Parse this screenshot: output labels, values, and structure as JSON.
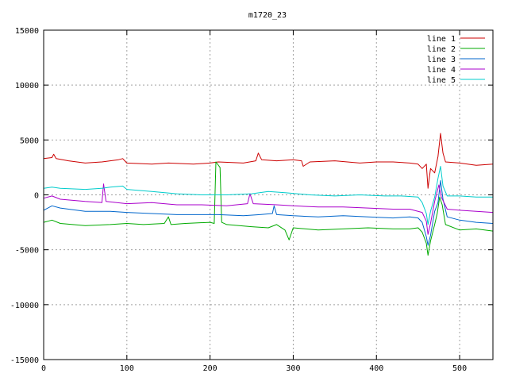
{
  "chart_data": {
    "type": "line",
    "title": "m1720_23",
    "xlabel": "",
    "ylabel": "",
    "xlim": [
      0,
      540
    ],
    "ylim": [
      -15000,
      15000
    ],
    "grid": true,
    "legend_position": "top-right",
    "x_ticks": [
      "0",
      "100",
      "200",
      "300",
      "400",
      "500"
    ],
    "y_ticks": [
      "15000",
      "10000",
      "5000",
      "0",
      "-5000",
      "-10000",
      "-15000"
    ],
    "x_tick_values": [
      0,
      100,
      200,
      300,
      400,
      500
    ],
    "y_tick_values": [
      15000,
      10000,
      5000,
      0,
      -5000,
      -10000,
      -15000
    ],
    "series": [
      {
        "name": "line 1",
        "color": "#cc0000",
        "points": [
          [
            0,
            3300
          ],
          [
            10,
            3400
          ],
          [
            12,
            3700
          ],
          [
            15,
            3300
          ],
          [
            30,
            3100
          ],
          [
            50,
            2900
          ],
          [
            70,
            3000
          ],
          [
            90,
            3200
          ],
          [
            95,
            3300
          ],
          [
            100,
            2900
          ],
          [
            130,
            2800
          ],
          [
            150,
            2900
          ],
          [
            180,
            2800
          ],
          [
            200,
            2900
          ],
          [
            210,
            3000
          ],
          [
            240,
            2900
          ],
          [
            255,
            3100
          ],
          [
            258,
            3800
          ],
          [
            262,
            3200
          ],
          [
            280,
            3100
          ],
          [
            300,
            3200
          ],
          [
            310,
            3100
          ],
          [
            312,
            2600
          ],
          [
            320,
            3000
          ],
          [
            350,
            3100
          ],
          [
            380,
            2900
          ],
          [
            400,
            3000
          ],
          [
            420,
            3000
          ],
          [
            440,
            2900
          ],
          [
            450,
            2800
          ],
          [
            455,
            2400
          ],
          [
            460,
            2800
          ],
          [
            462,
            600
          ],
          [
            465,
            2400
          ],
          [
            470,
            2000
          ],
          [
            474,
            3500
          ],
          [
            477,
            5600
          ],
          [
            480,
            3800
          ],
          [
            483,
            3000
          ],
          [
            500,
            2900
          ],
          [
            520,
            2700
          ],
          [
            540,
            2800
          ]
        ]
      },
      {
        "name": "line 2",
        "color": "#00aa00",
        "points": [
          [
            0,
            -2500
          ],
          [
            10,
            -2300
          ],
          [
            20,
            -2600
          ],
          [
            50,
            -2800
          ],
          [
            80,
            -2700
          ],
          [
            100,
            -2600
          ],
          [
            120,
            -2700
          ],
          [
            145,
            -2600
          ],
          [
            150,
            -2000
          ],
          [
            153,
            -2700
          ],
          [
            170,
            -2600
          ],
          [
            200,
            -2500
          ],
          [
            205,
            -2600
          ],
          [
            207,
            3000
          ],
          [
            212,
            2500
          ],
          [
            214,
            -2500
          ],
          [
            220,
            -2700
          ],
          [
            250,
            -2900
          ],
          [
            270,
            -3000
          ],
          [
            280,
            -2700
          ],
          [
            290,
            -3200
          ],
          [
            295,
            -4100
          ],
          [
            300,
            -3000
          ],
          [
            330,
            -3200
          ],
          [
            360,
            -3100
          ],
          [
            390,
            -3000
          ],
          [
            420,
            -3100
          ],
          [
            440,
            -3100
          ],
          [
            450,
            -3000
          ],
          [
            455,
            -3400
          ],
          [
            460,
            -4400
          ],
          [
            462,
            -5500
          ],
          [
            465,
            -4200
          ],
          [
            470,
            -2700
          ],
          [
            473,
            -1700
          ],
          [
            476,
            -200
          ],
          [
            479,
            -900
          ],
          [
            483,
            -2700
          ],
          [
            500,
            -3200
          ],
          [
            520,
            -3100
          ],
          [
            540,
            -3300
          ]
        ]
      },
      {
        "name": "line 3",
        "color": "#0066cc",
        "points": [
          [
            0,
            -1400
          ],
          [
            10,
            -1000
          ],
          [
            20,
            -1200
          ],
          [
            50,
            -1500
          ],
          [
            80,
            -1500
          ],
          [
            100,
            -1600
          ],
          [
            130,
            -1700
          ],
          [
            160,
            -1800
          ],
          [
            190,
            -1800
          ],
          [
            210,
            -1800
          ],
          [
            240,
            -1900
          ],
          [
            260,
            -1800
          ],
          [
            275,
            -1700
          ],
          [
            277,
            -1000
          ],
          [
            280,
            -1800
          ],
          [
            300,
            -1900
          ],
          [
            330,
            -2000
          ],
          [
            360,
            -1900
          ],
          [
            390,
            -2000
          ],
          [
            420,
            -2100
          ],
          [
            440,
            -2000
          ],
          [
            450,
            -2100
          ],
          [
            455,
            -2500
          ],
          [
            460,
            -3800
          ],
          [
            462,
            -4600
          ],
          [
            465,
            -3700
          ],
          [
            470,
            -1500
          ],
          [
            474,
            -700
          ],
          [
            477,
            1300
          ],
          [
            480,
            -400
          ],
          [
            485,
            -2000
          ],
          [
            500,
            -2300
          ],
          [
            520,
            -2500
          ],
          [
            540,
            -2600
          ]
        ]
      },
      {
        "name": "line 4",
        "color": "#aa00cc",
        "points": [
          [
            0,
            -300
          ],
          [
            10,
            -100
          ],
          [
            20,
            -400
          ],
          [
            50,
            -600
          ],
          [
            70,
            -700
          ],
          [
            72,
            1000
          ],
          [
            75,
            -600
          ],
          [
            100,
            -800
          ],
          [
            130,
            -700
          ],
          [
            160,
            -900
          ],
          [
            190,
            -900
          ],
          [
            220,
            -1000
          ],
          [
            245,
            -800
          ],
          [
            248,
            100
          ],
          [
            252,
            -800
          ],
          [
            280,
            -900
          ],
          [
            300,
            -1000
          ],
          [
            330,
            -1100
          ],
          [
            360,
            -1100
          ],
          [
            390,
            -1200
          ],
          [
            420,
            -1300
          ],
          [
            440,
            -1300
          ],
          [
            455,
            -1600
          ],
          [
            460,
            -2400
          ],
          [
            462,
            -3600
          ],
          [
            465,
            -2600
          ],
          [
            470,
            -600
          ],
          [
            475,
            900
          ],
          [
            478,
            -200
          ],
          [
            485,
            -1300
          ],
          [
            500,
            -1400
          ],
          [
            520,
            -1500
          ],
          [
            540,
            -1600
          ]
        ]
      },
      {
        "name": "line 5",
        "color": "#00cccc",
        "points": [
          [
            0,
            600
          ],
          [
            10,
            700
          ],
          [
            20,
            600
          ],
          [
            50,
            500
          ],
          [
            70,
            600
          ],
          [
            80,
            700
          ],
          [
            95,
            800
          ],
          [
            100,
            500
          ],
          [
            130,
            300
          ],
          [
            160,
            100
          ],
          [
            190,
            0
          ],
          [
            220,
            0
          ],
          [
            250,
            100
          ],
          [
            270,
            300
          ],
          [
            290,
            200
          ],
          [
            320,
            0
          ],
          [
            350,
            -100
          ],
          [
            380,
            0
          ],
          [
            410,
            -100
          ],
          [
            430,
            -100
          ],
          [
            450,
            -200
          ],
          [
            455,
            -700
          ],
          [
            460,
            -1700
          ],
          [
            462,
            -2700
          ],
          [
            465,
            -1500
          ],
          [
            470,
            -200
          ],
          [
            474,
            1500
          ],
          [
            477,
            2600
          ],
          [
            480,
            800
          ],
          [
            485,
            -100
          ],
          [
            500,
            -100
          ],
          [
            520,
            -200
          ],
          [
            540,
            -200
          ]
        ]
      }
    ]
  }
}
